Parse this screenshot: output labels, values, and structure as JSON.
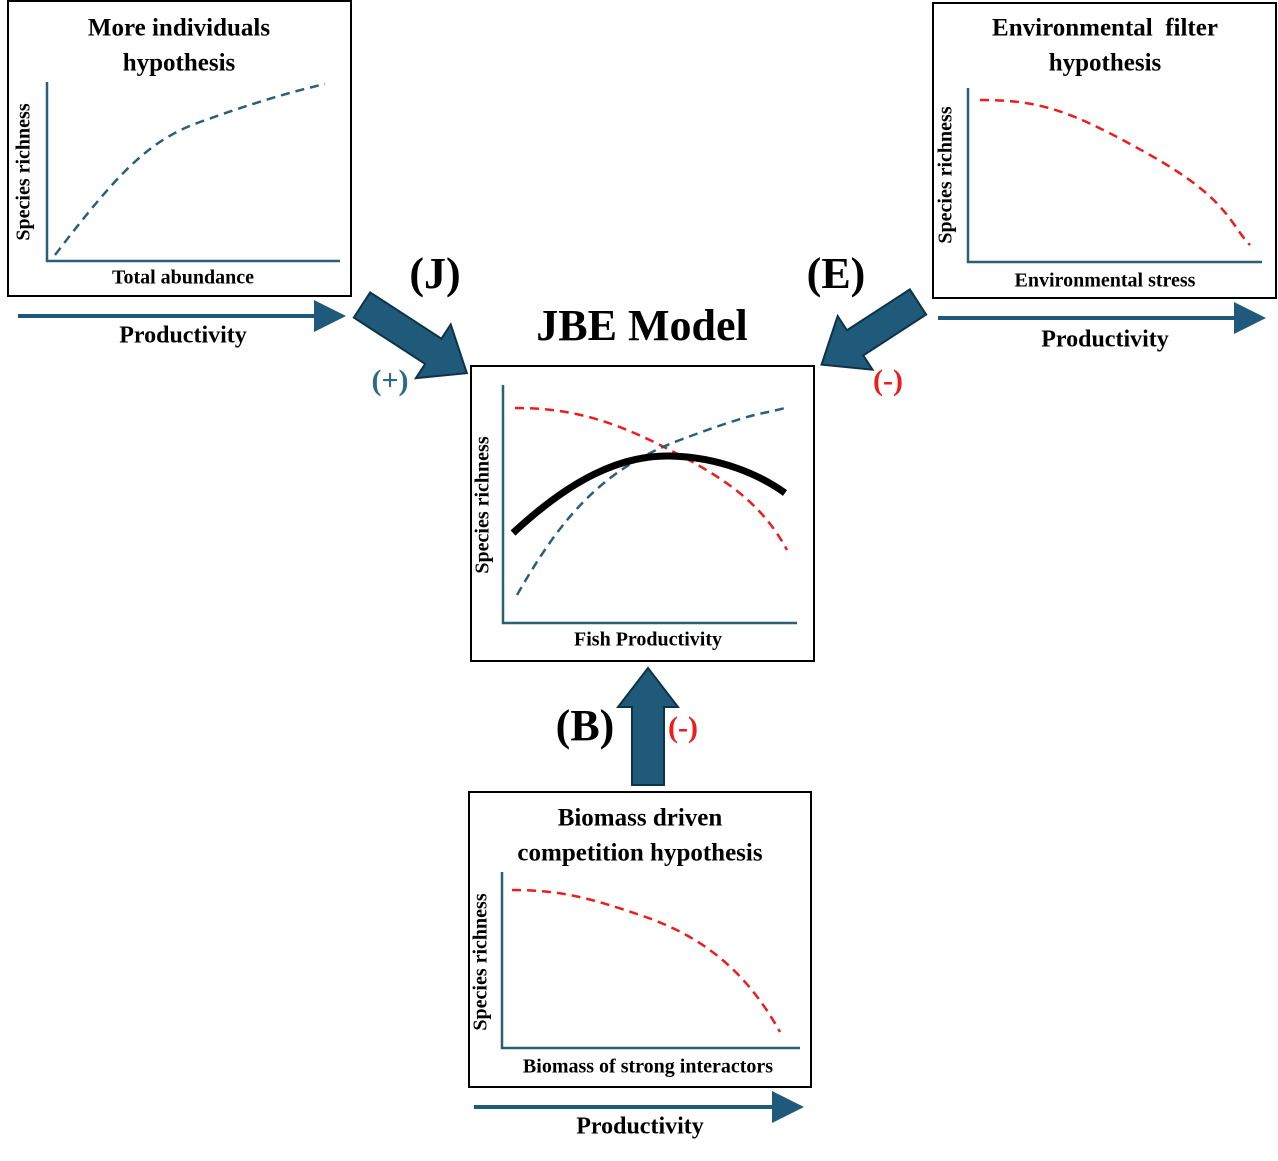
{
  "title": "JBE Model",
  "center": {
    "y_label": "Species richness",
    "x_label": "Fish Productivity"
  },
  "panels": [
    {
      "label": "(J)",
      "sign": "(+)",
      "title_lines": [
        "More individuals",
        "hypothesis"
      ],
      "y_label": "Species richness",
      "x_label": "Total abundance",
      "gradient": "Productivity"
    },
    {
      "label": "(E)",
      "sign": "(-)",
      "title_lines": [
        "Environmental  filter",
        "hypothesis"
      ],
      "y_label": "Species richness",
      "x_label": "Environmental stress",
      "gradient": "Productivity"
    },
    {
      "label": "(B)",
      "sign": "(-)",
      "title_lines": [
        "Biomass driven",
        "competition hypothesis"
      ],
      "y_label": "Species richness",
      "x_label": "Biomass of strong interactors",
      "gradient": "Productivity"
    }
  ]
}
